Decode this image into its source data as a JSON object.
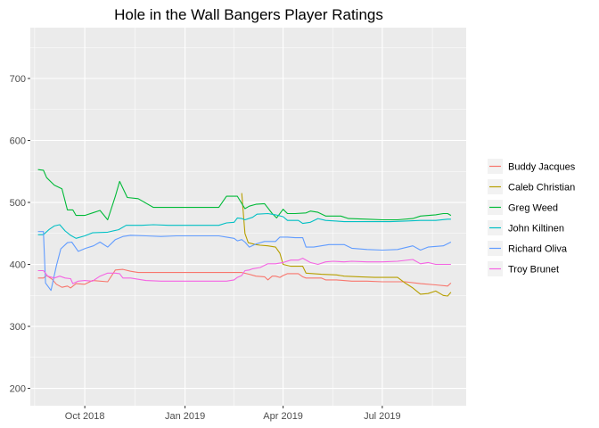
{
  "chart_data": {
    "type": "line",
    "title": "Hole in the Wall Bangers Player Ratings",
    "xlabel": "",
    "ylabel": "",
    "x_ticks": [
      {
        "date": "2018-10-01",
        "label": "Oct 2018"
      },
      {
        "date": "2019-01-01",
        "label": "Jan 2019"
      },
      {
        "date": "2019-04-01",
        "label": "Apr 2019"
      },
      {
        "date": "2019-07-01",
        "label": "Jul 2019"
      }
    ],
    "y_ticks": [
      200,
      300,
      400,
      500,
      600,
      700
    ],
    "xlim": [
      "2018-08-12",
      "2019-09-16"
    ],
    "ylim": [
      172,
      782
    ],
    "grid": true,
    "legend_position": "right",
    "background": "#ebebeb",
    "grid_color": "#ffffff",
    "series": [
      {
        "name": "Buddy Jacques",
        "color": "#f8766d",
        "points": [
          [
            "2018-08-19",
            378
          ],
          [
            "2018-08-24",
            378
          ],
          [
            "2018-08-27",
            382
          ],
          [
            "2018-09-01",
            376
          ],
          [
            "2018-09-05",
            368
          ],
          [
            "2018-09-10",
            363
          ],
          [
            "2018-09-15",
            365
          ],
          [
            "2018-09-18",
            362
          ],
          [
            "2018-09-23",
            369
          ],
          [
            "2018-10-01",
            368
          ],
          [
            "2018-10-08",
            374
          ],
          [
            "2018-10-22",
            372
          ],
          [
            "2018-10-29",
            391
          ],
          [
            "2018-11-05",
            392
          ],
          [
            "2018-11-12",
            389
          ],
          [
            "2018-11-19",
            387
          ],
          [
            "2019-01-07",
            387
          ],
          [
            "2019-02-15",
            387
          ],
          [
            "2019-02-22",
            387
          ],
          [
            "2019-03-01",
            384
          ],
          [
            "2019-03-07",
            381
          ],
          [
            "2019-03-15",
            380
          ],
          [
            "2019-03-18",
            375
          ],
          [
            "2019-03-22",
            381
          ],
          [
            "2019-03-25",
            381
          ],
          [
            "2019-03-29",
            379
          ],
          [
            "2019-04-01",
            382
          ],
          [
            "2019-04-05",
            385
          ],
          [
            "2019-04-12",
            385
          ],
          [
            "2019-04-15",
            385
          ],
          [
            "2019-04-19",
            380
          ],
          [
            "2019-04-22",
            378
          ],
          [
            "2019-04-29",
            378
          ],
          [
            "2019-05-06",
            378
          ],
          [
            "2019-05-10",
            375
          ],
          [
            "2019-05-20",
            375
          ],
          [
            "2019-06-03",
            373
          ],
          [
            "2019-06-17",
            373
          ],
          [
            "2019-07-01",
            372
          ],
          [
            "2019-07-22",
            372
          ],
          [
            "2019-08-05",
            369
          ],
          [
            "2019-08-19",
            367
          ],
          [
            "2019-08-30",
            365
          ],
          [
            "2019-09-02",
            370
          ]
        ]
      },
      {
        "name": "Caleb Christian",
        "color": "#b79f00",
        "points": [
          [
            "2019-02-22",
            515
          ],
          [
            "2019-02-25",
            450
          ],
          [
            "2019-02-28",
            435
          ],
          [
            "2019-03-07",
            432
          ],
          [
            "2019-03-11",
            431
          ],
          [
            "2019-03-18",
            430
          ],
          [
            "2019-03-25",
            428
          ],
          [
            "2019-03-29",
            418
          ],
          [
            "2019-04-01",
            400
          ],
          [
            "2019-04-08",
            397
          ],
          [
            "2019-04-15",
            397
          ],
          [
            "2019-04-19",
            397
          ],
          [
            "2019-04-22",
            386
          ],
          [
            "2019-04-29",
            385
          ],
          [
            "2019-05-06",
            384
          ],
          [
            "2019-05-20",
            383
          ],
          [
            "2019-05-27",
            381
          ],
          [
            "2019-06-10",
            380
          ],
          [
            "2019-06-24",
            379
          ],
          [
            "2019-07-15",
            379
          ],
          [
            "2019-07-22",
            370
          ],
          [
            "2019-07-29",
            362
          ],
          [
            "2019-08-05",
            352
          ],
          [
            "2019-08-12",
            353
          ],
          [
            "2019-08-19",
            357
          ],
          [
            "2019-08-26",
            350
          ],
          [
            "2019-08-30",
            349
          ],
          [
            "2019-09-02",
            355
          ]
        ]
      },
      {
        "name": "Greg Weed",
        "color": "#00ba38",
        "points": [
          [
            "2018-08-19",
            553
          ],
          [
            "2018-08-24",
            552
          ],
          [
            "2018-08-27",
            540
          ],
          [
            "2018-09-03",
            528
          ],
          [
            "2018-09-10",
            522
          ],
          [
            "2018-09-15",
            488
          ],
          [
            "2018-09-20",
            488
          ],
          [
            "2018-09-23",
            479
          ],
          [
            "2018-10-01",
            479
          ],
          [
            "2018-10-08",
            483
          ],
          [
            "2018-10-15",
            487
          ],
          [
            "2018-10-22",
            472
          ],
          [
            "2018-10-29",
            510
          ],
          [
            "2018-11-02",
            534
          ],
          [
            "2018-11-09",
            508
          ],
          [
            "2018-11-19",
            506
          ],
          [
            "2018-12-03",
            492
          ],
          [
            "2018-12-17",
            492
          ],
          [
            "2019-01-07",
            492
          ],
          [
            "2019-02-01",
            492
          ],
          [
            "2019-02-08",
            510
          ],
          [
            "2019-02-18",
            510
          ],
          [
            "2019-02-25",
            490
          ],
          [
            "2019-03-01",
            494
          ],
          [
            "2019-03-07",
            497
          ],
          [
            "2019-03-15",
            498
          ],
          [
            "2019-03-22",
            482
          ],
          [
            "2019-03-26",
            475
          ],
          [
            "2019-04-01",
            489
          ],
          [
            "2019-04-05",
            482
          ],
          [
            "2019-04-12",
            482
          ],
          [
            "2019-04-22",
            483
          ],
          [
            "2019-04-26",
            486
          ],
          [
            "2019-05-03",
            484
          ],
          [
            "2019-05-10",
            478
          ],
          [
            "2019-05-24",
            478
          ],
          [
            "2019-05-31",
            474
          ],
          [
            "2019-06-17",
            473
          ],
          [
            "2019-07-01",
            472
          ],
          [
            "2019-07-15",
            472
          ],
          [
            "2019-07-29",
            474
          ],
          [
            "2019-08-05",
            478
          ],
          [
            "2019-08-19",
            480
          ],
          [
            "2019-08-26",
            482
          ],
          [
            "2019-08-30",
            482
          ],
          [
            "2019-09-02",
            479
          ]
        ]
      },
      {
        "name": "John Kiltinen",
        "color": "#00bfc4",
        "points": [
          [
            "2018-08-19",
            448
          ],
          [
            "2018-08-24",
            448
          ],
          [
            "2018-08-29",
            456
          ],
          [
            "2018-09-03",
            462
          ],
          [
            "2018-09-08",
            464
          ],
          [
            "2018-09-13",
            454
          ],
          [
            "2018-09-18",
            447
          ],
          [
            "2018-09-23",
            442
          ],
          [
            "2018-10-01",
            446
          ],
          [
            "2018-10-08",
            451
          ],
          [
            "2018-10-22",
            452
          ],
          [
            "2018-11-01",
            456
          ],
          [
            "2018-11-08",
            463
          ],
          [
            "2018-11-22",
            463
          ],
          [
            "2018-12-03",
            464
          ],
          [
            "2018-12-17",
            463
          ],
          [
            "2019-01-07",
            463
          ],
          [
            "2019-02-01",
            463
          ],
          [
            "2019-02-08",
            467
          ],
          [
            "2019-02-15",
            468
          ],
          [
            "2019-02-18",
            475
          ],
          [
            "2019-02-22",
            474
          ],
          [
            "2019-02-25",
            472
          ],
          [
            "2019-03-04",
            476
          ],
          [
            "2019-03-08",
            481
          ],
          [
            "2019-03-18",
            482
          ],
          [
            "2019-03-25",
            480
          ],
          [
            "2019-04-01",
            477
          ],
          [
            "2019-04-05",
            471
          ],
          [
            "2019-04-12",
            471
          ],
          [
            "2019-04-15",
            471
          ],
          [
            "2019-04-19",
            466
          ],
          [
            "2019-04-26",
            468
          ],
          [
            "2019-05-03",
            474
          ],
          [
            "2019-05-10",
            471
          ],
          [
            "2019-05-20",
            470
          ],
          [
            "2019-05-27",
            469
          ],
          [
            "2019-06-10",
            469
          ],
          [
            "2019-06-24",
            469
          ],
          [
            "2019-07-08",
            469
          ],
          [
            "2019-07-22",
            470
          ],
          [
            "2019-08-05",
            471
          ],
          [
            "2019-08-19",
            471
          ],
          [
            "2019-08-30",
            473
          ],
          [
            "2019-09-02",
            473
          ]
        ]
      },
      {
        "name": "Richard Oliva",
        "color": "#619cff",
        "points": [
          [
            "2018-08-19",
            453
          ],
          [
            "2018-08-24",
            453
          ],
          [
            "2018-08-26",
            370
          ],
          [
            "2018-08-31",
            358
          ],
          [
            "2018-09-05",
            398
          ],
          [
            "2018-09-09",
            425
          ],
          [
            "2018-09-15",
            435
          ],
          [
            "2018-09-19",
            436
          ],
          [
            "2018-09-25",
            421
          ],
          [
            "2018-10-02",
            426
          ],
          [
            "2018-10-09",
            430
          ],
          [
            "2018-10-15",
            436
          ],
          [
            "2018-10-22",
            428
          ],
          [
            "2018-10-29",
            440
          ],
          [
            "2018-11-05",
            445
          ],
          [
            "2018-11-12",
            447
          ],
          [
            "2018-11-26",
            446
          ],
          [
            "2018-12-10",
            445
          ],
          [
            "2018-12-24",
            446
          ],
          [
            "2019-01-07",
            446
          ],
          [
            "2019-02-01",
            446
          ],
          [
            "2019-02-08",
            444
          ],
          [
            "2019-02-15",
            442
          ],
          [
            "2019-02-18",
            438
          ],
          [
            "2019-02-22",
            440
          ],
          [
            "2019-02-25",
            436
          ],
          [
            "2019-03-01",
            428
          ],
          [
            "2019-03-07",
            433
          ],
          [
            "2019-03-15",
            437
          ],
          [
            "2019-03-25",
            437
          ],
          [
            "2019-03-29",
            444
          ],
          [
            "2019-04-05",
            444
          ],
          [
            "2019-04-12",
            443
          ],
          [
            "2019-04-19",
            443
          ],
          [
            "2019-04-22",
            428
          ],
          [
            "2019-04-29",
            428
          ],
          [
            "2019-05-06",
            430
          ],
          [
            "2019-05-13",
            432
          ],
          [
            "2019-05-27",
            432
          ],
          [
            "2019-06-03",
            426
          ],
          [
            "2019-06-17",
            424
          ],
          [
            "2019-07-01",
            423
          ],
          [
            "2019-07-15",
            424
          ],
          [
            "2019-07-29",
            430
          ],
          [
            "2019-08-05",
            423
          ],
          [
            "2019-08-12",
            428
          ],
          [
            "2019-08-26",
            430
          ],
          [
            "2019-09-02",
            436
          ]
        ]
      },
      {
        "name": "Troy Brunet",
        "color": "#f564e3",
        "points": [
          [
            "2018-08-19",
            390
          ],
          [
            "2018-08-24",
            390
          ],
          [
            "2018-08-28",
            381
          ],
          [
            "2018-09-03",
            378
          ],
          [
            "2018-09-08",
            381
          ],
          [
            "2018-09-13",
            378
          ],
          [
            "2018-09-18",
            377
          ],
          [
            "2018-09-20",
            369
          ],
          [
            "2018-09-25",
            373
          ],
          [
            "2018-10-01",
            374
          ],
          [
            "2018-10-08",
            373
          ],
          [
            "2018-10-15",
            381
          ],
          [
            "2018-10-22",
            386
          ],
          [
            "2018-10-29",
            386
          ],
          [
            "2018-11-02",
            385
          ],
          [
            "2018-11-05",
            378
          ],
          [
            "2018-11-12",
            378
          ],
          [
            "2018-11-26",
            374
          ],
          [
            "2018-12-10",
            373
          ],
          [
            "2019-01-07",
            373
          ],
          [
            "2019-02-08",
            373
          ],
          [
            "2019-02-15",
            375
          ],
          [
            "2019-02-18",
            379
          ],
          [
            "2019-02-22",
            382
          ],
          [
            "2019-02-25",
            390
          ],
          [
            "2019-03-01",
            391
          ],
          [
            "2019-03-04",
            393
          ],
          [
            "2019-03-11",
            395
          ],
          [
            "2019-03-18",
            401
          ],
          [
            "2019-03-25",
            401
          ],
          [
            "2019-04-01",
            403
          ],
          [
            "2019-04-08",
            407
          ],
          [
            "2019-04-15",
            407
          ],
          [
            "2019-04-19",
            410
          ],
          [
            "2019-04-26",
            403
          ],
          [
            "2019-05-03",
            400
          ],
          [
            "2019-05-10",
            404
          ],
          [
            "2019-05-17",
            405
          ],
          [
            "2019-05-27",
            404
          ],
          [
            "2019-06-03",
            405
          ],
          [
            "2019-06-17",
            404
          ],
          [
            "2019-07-01",
            404
          ],
          [
            "2019-07-15",
            405
          ],
          [
            "2019-07-29",
            408
          ],
          [
            "2019-08-05",
            401
          ],
          [
            "2019-08-12",
            403
          ],
          [
            "2019-08-19",
            400
          ],
          [
            "2019-08-26",
            400
          ],
          [
            "2019-09-02",
            400
          ]
        ]
      }
    ]
  }
}
